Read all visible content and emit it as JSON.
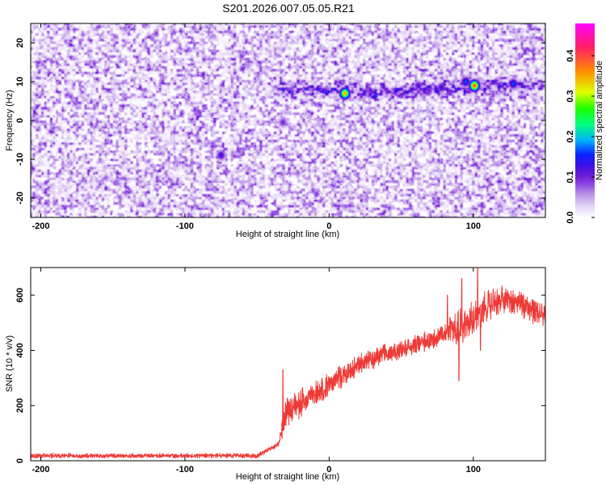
{
  "title": "S201.2026.007.05.05.R21",
  "colors": {
    "snr_line": "#ee3a36",
    "frame": "#000000",
    "background": "#ffffff",
    "colormap": [
      "#ffffff",
      "#e0d0f4",
      "#b78be9",
      "#8a3ee2",
      "#6a1ad2",
      "#3a10e8",
      "#0a20ff",
      "#00b0ff",
      "#00ff80",
      "#20ff00",
      "#e0ff00",
      "#ff9000",
      "#ff2060",
      "#ff00ff"
    ]
  },
  "chart_data": [
    {
      "type": "heatmap",
      "xlabel": "Height of straight line (km)",
      "ylabel": "Frequency (Hz)",
      "xlim": [
        -207,
        150
      ],
      "ylim": [
        -25,
        25
      ],
      "xticks": [
        -200,
        -100,
        0,
        100
      ],
      "yticks": [
        -20,
        -10,
        0,
        10,
        20
      ],
      "colorbar": {
        "label": "Normalized spectral amplitude",
        "range": [
          0.0,
          0.48
        ],
        "ticks": [
          0.0,
          0.1,
          0.2,
          0.3,
          0.4
        ]
      },
      "background_amplitude": 0.06,
      "signal_ridge": {
        "x_range": [
          -45,
          150
        ],
        "frequency": [
          [
            -45,
            8.5
          ],
          [
            0,
            7.5
          ],
          [
            50,
            7.5
          ],
          [
            100,
            8.5
          ],
          [
            150,
            9.5
          ]
        ]
      },
      "peaks": [
        {
          "x": 11,
          "y": 7.0,
          "amplitude": 0.36
        },
        {
          "x": 101,
          "y": 9.0,
          "amplitude": 0.4
        },
        {
          "x": 95,
          "y": 10.0,
          "amplitude": 0.17
        },
        {
          "x": 128,
          "y": 9.5,
          "amplitude": 0.17
        },
        {
          "x": 78,
          "y": 8.5,
          "amplitude": 0.13
        },
        {
          "x": -75,
          "y": -9.0,
          "amplitude": 0.13
        },
        {
          "x": -32,
          "y": -0.5,
          "amplitude": 0.1
        },
        {
          "x": 62,
          "y": 9.0,
          "amplitude": 0.12
        }
      ]
    },
    {
      "type": "line",
      "xlabel": "Height of straight line (km)",
      "ylabel": "SNR (10 * v/v)",
      "xlim": [
        -207,
        150
      ],
      "ylim": [
        0,
        700
      ],
      "xticks": [
        -200,
        -100,
        0,
        100
      ],
      "yticks": [
        0,
        200,
        400,
        600
      ],
      "series": [
        {
          "profile": [
            [
              -207,
              18
            ],
            [
              -50,
              18
            ],
            [
              -35,
              60
            ],
            [
              -30,
              175
            ],
            [
              -20,
              210
            ],
            [
              -10,
              240
            ],
            [
              0,
              275
            ],
            [
              10,
              310
            ],
            [
              20,
              345
            ],
            [
              30,
              370
            ],
            [
              40,
              390
            ],
            [
              50,
              400
            ],
            [
              60,
              420
            ],
            [
              70,
              440
            ],
            [
              80,
              460
            ],
            [
              90,
              480
            ],
            [
              100,
              520
            ],
            [
              110,
              560
            ],
            [
              120,
              585
            ],
            [
              130,
              570
            ],
            [
              140,
              550
            ],
            [
              150,
              520
            ]
          ],
          "noise": [
            [
              -207,
              7
            ],
            [
              -35,
              7
            ],
            [
              -30,
              45
            ],
            [
              0,
              35
            ],
            [
              50,
              25
            ],
            [
              80,
              30
            ],
            [
              90,
              55
            ],
            [
              110,
              45
            ],
            [
              150,
              35
            ]
          ],
          "spikes": [
            [
              -32,
              330
            ],
            [
              82,
              600
            ],
            [
              90,
              290
            ],
            [
              92,
              660
            ],
            [
              103,
              700
            ],
            [
              105,
              400
            ]
          ]
        }
      ]
    }
  ]
}
